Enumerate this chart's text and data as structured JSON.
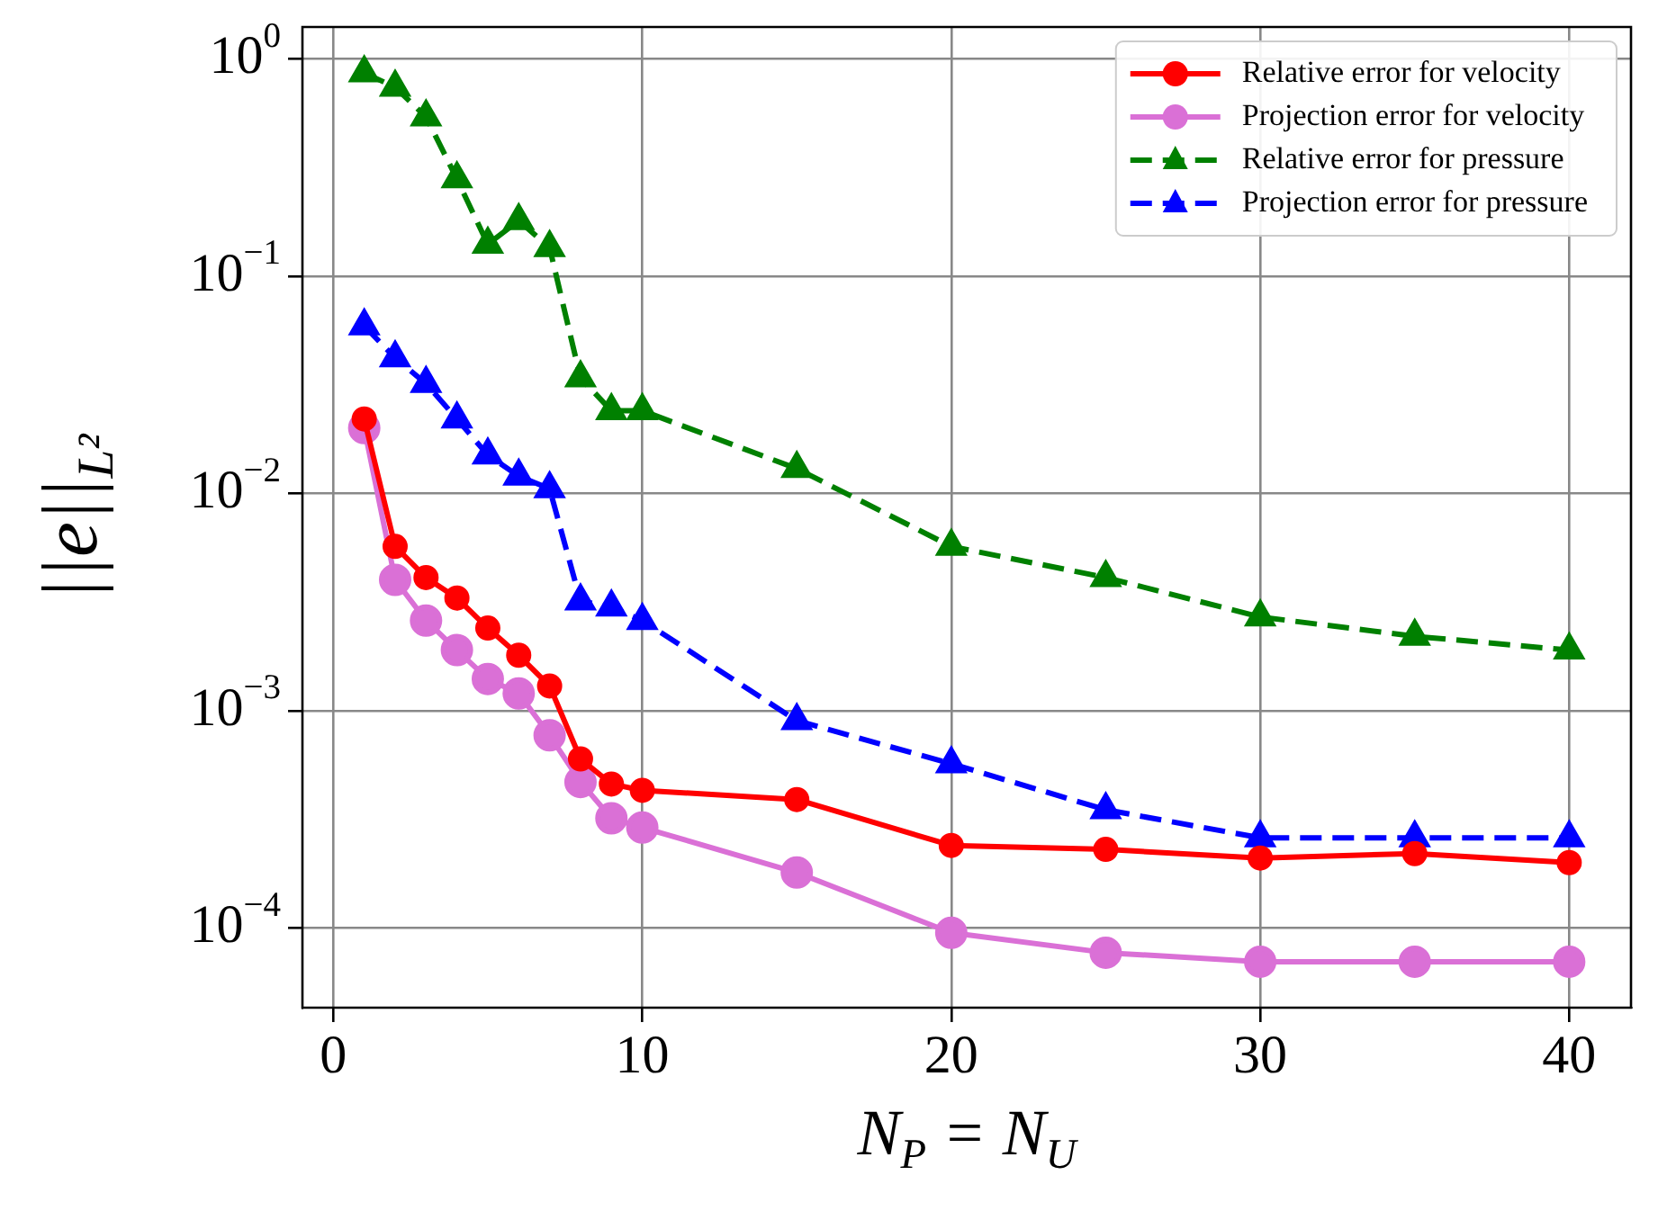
{
  "chart_data": {
    "type": "line",
    "xlabel": "N$_{P}$ = N$_{U}$",
    "ylabel": "||e||$_{L²}$",
    "x": [
      1,
      2,
      3,
      4,
      5,
      6,
      7,
      8,
      9,
      10,
      15,
      20,
      25,
      30,
      35,
      40
    ],
    "series": [
      {
        "name": "Relative error for velocity",
        "color": "#ff0000",
        "marker": "circle",
        "line_style": "solid",
        "values": [
          0.022,
          0.0057,
          0.0041,
          0.0033,
          0.0024,
          0.0018,
          0.0013,
          0.0006,
          0.00046,
          0.00043,
          0.00039,
          0.00024,
          0.00023,
          0.00021,
          0.00022,
          0.0002
        ]
      },
      {
        "name": "Projection error for velocity",
        "color": "#da70d6",
        "marker": "circle",
        "line_style": "solid",
        "values": [
          0.02,
          0.004,
          0.0026,
          0.0019,
          0.0014,
          0.0012,
          0.00077,
          0.00047,
          0.00032,
          0.00029,
          0.00018,
          9.5e-05,
          7.7e-05,
          7e-05,
          7e-05,
          7e-05
        ]
      },
      {
        "name": "Relative error for pressure",
        "color": "#008000",
        "marker": "triangle",
        "line_style": "dashed",
        "values": [
          0.86,
          0.74,
          0.54,
          0.28,
          0.14,
          0.18,
          0.135,
          0.034,
          0.024,
          0.024,
          0.013,
          0.0057,
          0.0041,
          0.0027,
          0.0022,
          0.0019
        ]
      },
      {
        "name": "Projection error for pressure",
        "color": "#0000ff",
        "marker": "triangle",
        "line_style": "dashed",
        "values": [
          0.059,
          0.042,
          0.032,
          0.022,
          0.015,
          0.012,
          0.0105,
          0.0032,
          0.003,
          0.0026,
          0.0009,
          0.00057,
          0.00035,
          0.00026,
          0.00026,
          0.00026
        ]
      }
    ],
    "log": "y",
    "xlim": [
      -1,
      42
    ],
    "xticks": [
      0,
      10,
      20,
      30,
      40
    ],
    "ylim": [
      4.3e-05,
      1.4
    ],
    "yticks": [
      {
        "value": 1,
        "label": "10$^{0}$"
      },
      {
        "value": 0.1,
        "label": "10$^{−1}$"
      },
      {
        "value": 0.01,
        "label": "10$^{−2}$"
      },
      {
        "value": 0.001,
        "label": "10$^{−3}$"
      },
      {
        "value": 0.0001,
        "label": "10$^{−4}$"
      }
    ],
    "grid": true,
    "legend": "top right"
  }
}
